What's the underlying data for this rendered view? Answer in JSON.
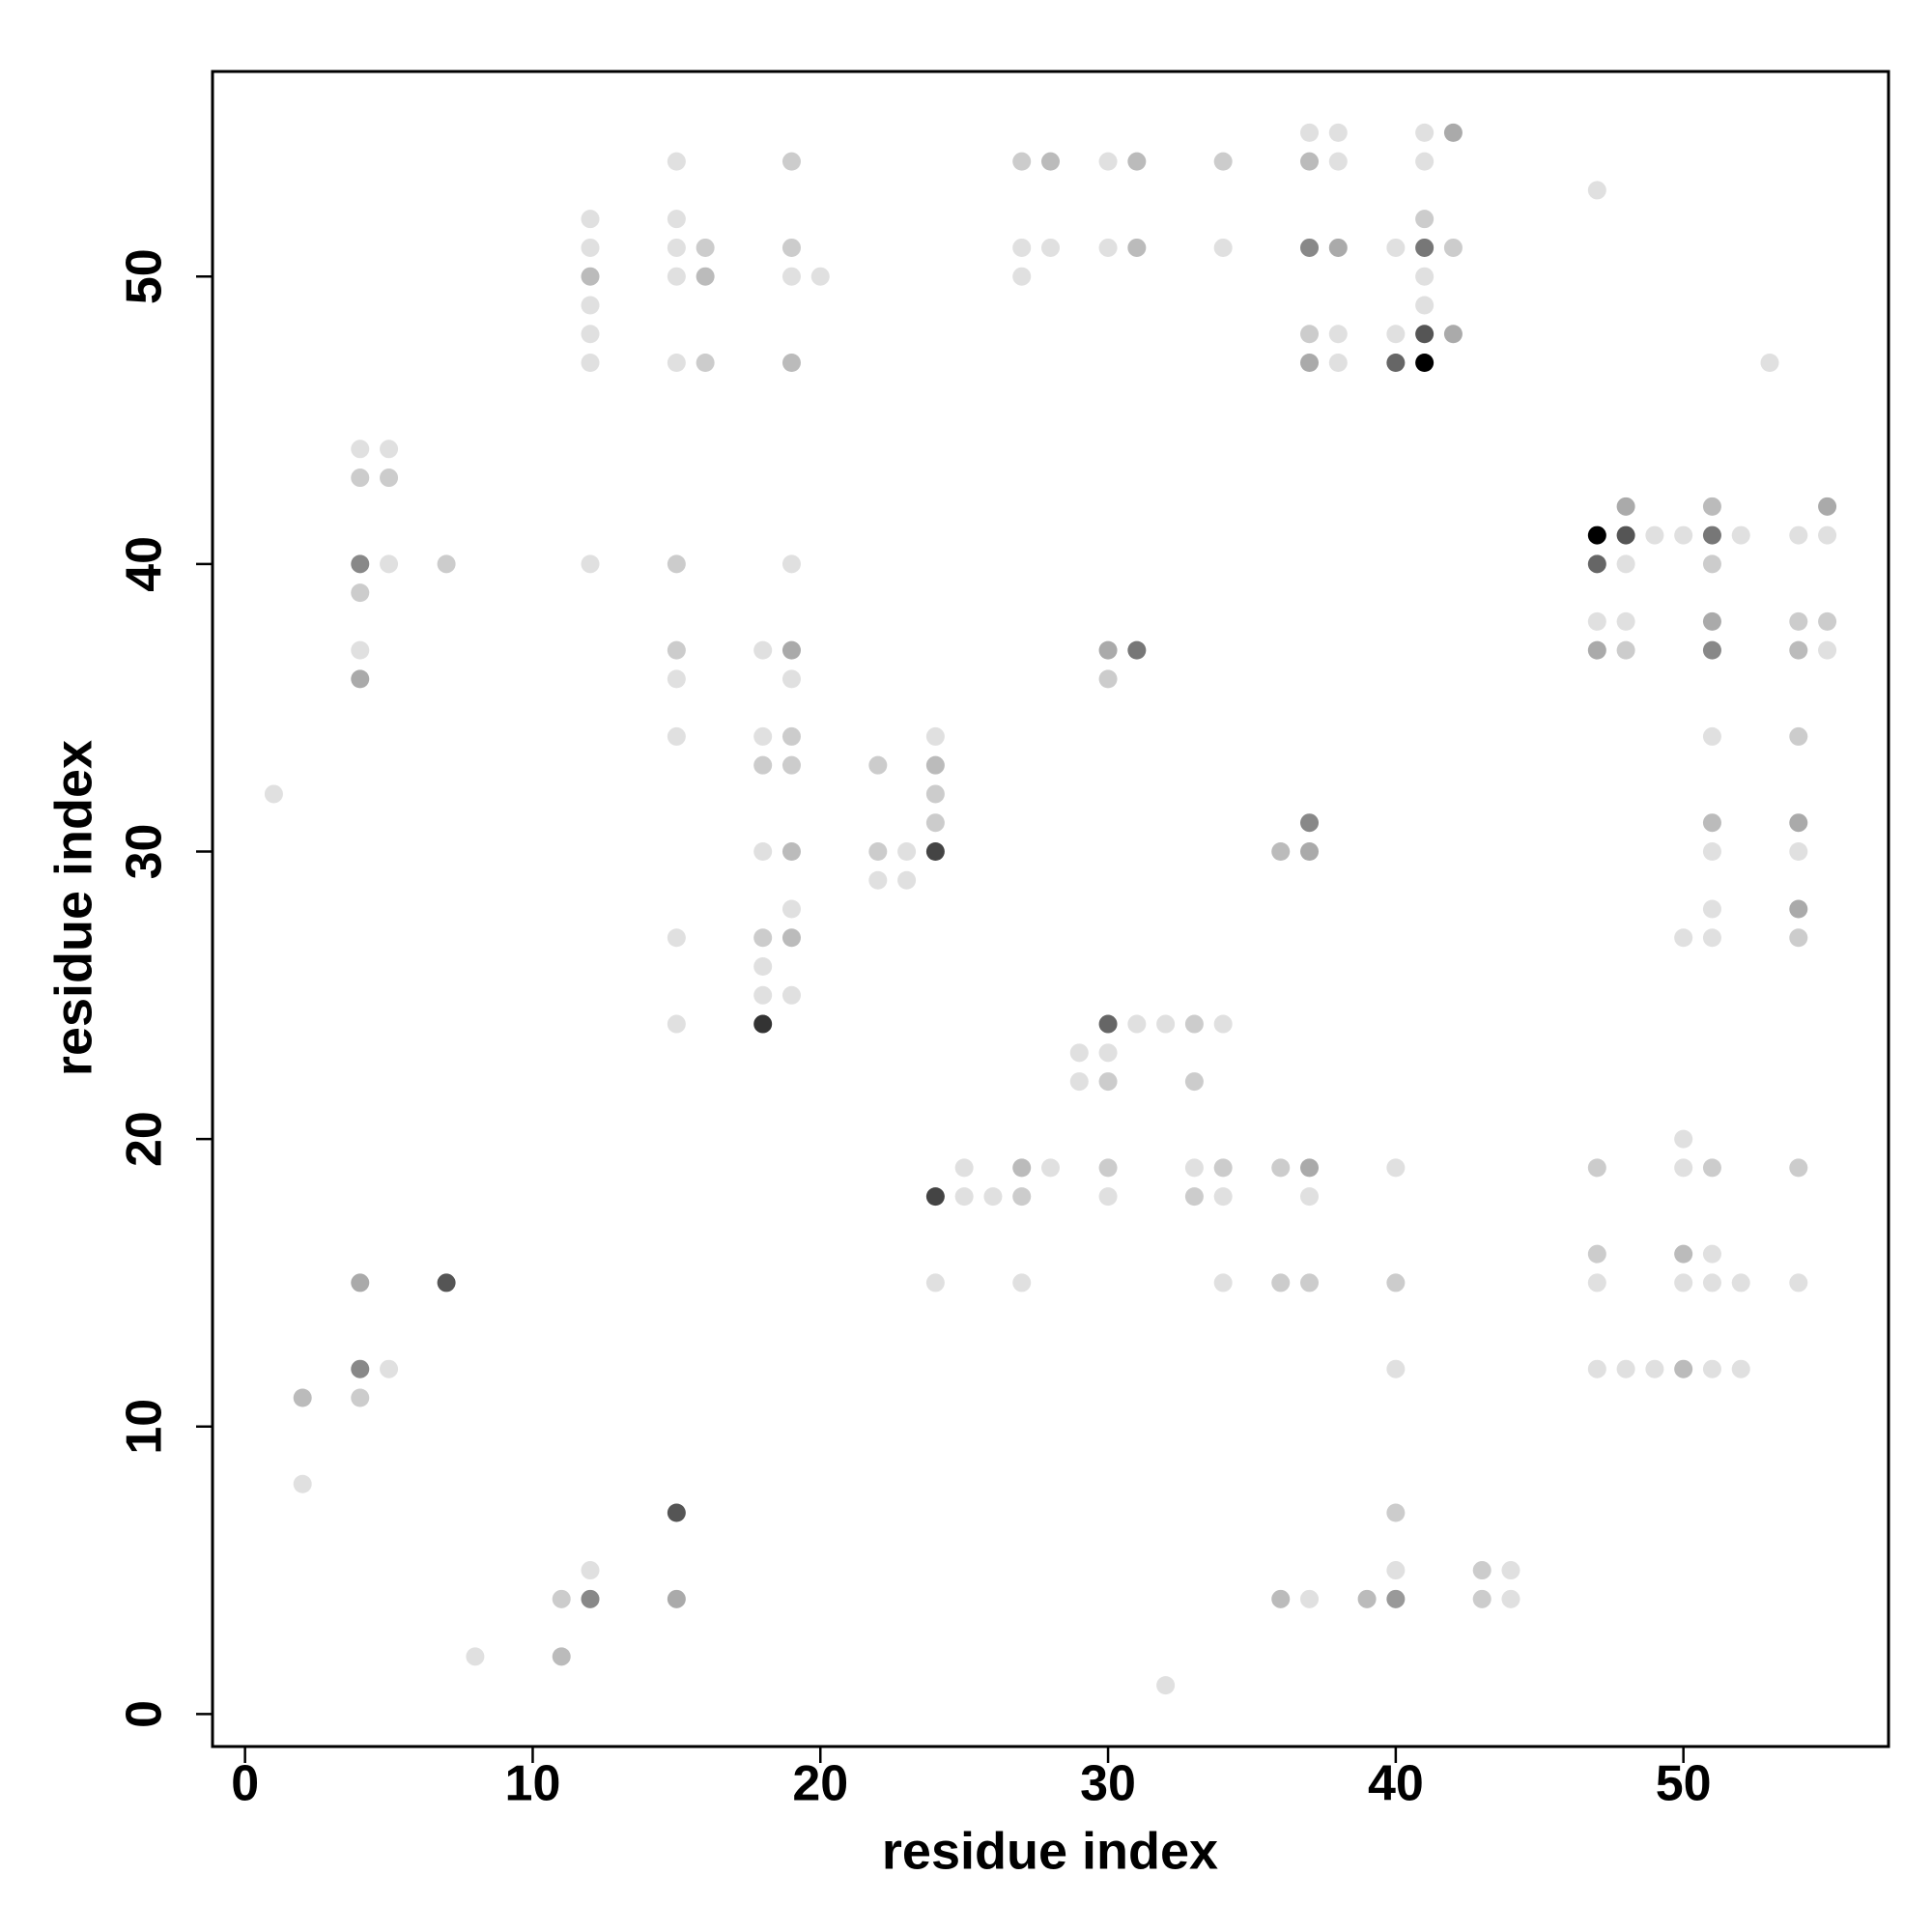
{
  "chart_data": {
    "type": "scatter",
    "xlabel": "residue index",
    "ylabel": "residue index",
    "xlim": [
      -1.13,
      57.13
    ],
    "ylim": [
      -1.13,
      57.13
    ],
    "xticks": [
      0,
      10,
      20,
      30,
      40,
      50
    ],
    "yticks": [
      0,
      10,
      20,
      30,
      40,
      50
    ],
    "x": [
      37,
      38,
      41,
      42,
      15,
      19,
      27,
      28,
      30,
      31,
      34,
      37,
      38,
      41,
      47,
      12,
      15,
      41,
      12,
      15,
      16,
      19,
      27,
      28,
      30,
      31,
      34,
      37,
      38,
      40,
      41,
      42,
      12,
      15,
      16,
      19,
      20,
      27,
      41,
      12,
      41,
      12,
      37,
      38,
      40,
      41,
      42,
      12,
      15,
      16,
      19,
      37,
      38,
      40,
      41,
      53,
      4,
      5,
      4,
      5,
      48,
      51,
      55,
      47,
      48,
      49,
      50,
      51,
      52,
      54,
      55,
      4,
      5,
      7,
      12,
      15,
      19,
      47,
      48,
      51,
      4,
      47,
      48,
      51,
      54,
      55,
      4,
      15,
      18,
      19,
      30,
      31,
      47,
      48,
      51,
      54,
      55,
      4,
      15,
      19,
      30,
      15,
      18,
      19,
      24,
      51,
      54,
      18,
      19,
      22,
      24,
      1,
      24,
      24,
      37,
      51,
      54,
      18,
      19,
      22,
      23,
      24,
      36,
      37,
      51,
      54,
      22,
      23,
      19,
      51,
      54,
      15,
      18,
      19,
      50,
      51,
      54,
      18,
      18,
      19,
      15,
      18,
      30,
      31,
      32,
      33,
      34,
      29,
      30,
      29,
      30,
      33,
      50,
      25,
      27,
      28,
      30,
      33,
      34,
      36,
      37,
      40,
      47,
      50,
      51,
      54,
      24,
      25,
      26,
      27,
      30,
      33,
      34,
      37,
      47,
      50,
      51,
      4,
      7,
      24,
      27,
      34,
      36,
      37,
      40,
      47,
      50,
      51,
      52,
      54,
      4,
      5,
      40,
      47,
      48,
      49,
      50,
      51,
      52,
      2,
      4,
      2,
      15,
      40,
      12,
      40,
      43,
      44,
      11,
      12,
      15,
      36,
      37,
      39,
      40,
      43,
      44,
      8,
      11,
      32
    ],
    "values": [
      55,
      55,
      55,
      55,
      54,
      54,
      54,
      54,
      54,
      54,
      54,
      54,
      54,
      54,
      53,
      52,
      52,
      52,
      51,
      51,
      51,
      51,
      51,
      51,
      51,
      51,
      51,
      51,
      51,
      51,
      51,
      51,
      50,
      50,
      50,
      50,
      50,
      50,
      50,
      49,
      49,
      48,
      48,
      48,
      48,
      48,
      48,
      47,
      47,
      47,
      47,
      47,
      47,
      47,
      47,
      47,
      44,
      44,
      43,
      43,
      42,
      42,
      42,
      41,
      41,
      41,
      41,
      41,
      41,
      41,
      41,
      40,
      40,
      40,
      40,
      40,
      40,
      40,
      40,
      40,
      39,
      38,
      38,
      38,
      38,
      38,
      37,
      37,
      37,
      37,
      37,
      37,
      37,
      37,
      37,
      37,
      37,
      36,
      36,
      36,
      36,
      34,
      34,
      34,
      34,
      34,
      34,
      33,
      33,
      33,
      33,
      32,
      32,
      31,
      31,
      31,
      31,
      30,
      30,
      30,
      30,
      30,
      30,
      30,
      30,
      30,
      29,
      29,
      28,
      28,
      28,
      27,
      27,
      27,
      27,
      27,
      27,
      26,
      25,
      25,
      24,
      24,
      24,
      24,
      24,
      24,
      24,
      23,
      23,
      22,
      22,
      22,
      20,
      19,
      19,
      19,
      19,
      19,
      19,
      19,
      19,
      19,
      19,
      19,
      19,
      19,
      18,
      18,
      18,
      18,
      18,
      18,
      18,
      18,
      16,
      16,
      16,
      15,
      15,
      15,
      15,
      15,
      15,
      15,
      15,
      15,
      15,
      15,
      15,
      15,
      12,
      12,
      12,
      12,
      12,
      12,
      12,
      12,
      12,
      11,
      11,
      8,
      7,
      7,
      5,
      5,
      5,
      5,
      4,
      4,
      4,
      4,
      4,
      4,
      4,
      4,
      4,
      2,
      2,
      1
    ],
    "colors": [
      "#e0e0e0",
      "#e0e0e0",
      "#e0e0e0",
      "#aaaaaa",
      "#e0e0e0",
      "#cccccc",
      "#cccccc",
      "#bbbbbb",
      "#e0e0e0",
      "#bbbbbb",
      "#cccccc",
      "#bbbbbb",
      "#e0e0e0",
      "#e0e0e0",
      "#e0e0e0",
      "#e0e0e0",
      "#e0e0e0",
      "#cccccc",
      "#e0e0e0",
      "#e0e0e0",
      "#cccccc",
      "#cccccc",
      "#e0e0e0",
      "#e0e0e0",
      "#e0e0e0",
      "#bbbbbb",
      "#e0e0e0",
      "#888888",
      "#aaaaaa",
      "#e0e0e0",
      "#777777",
      "#cccccc",
      "#bbbbbb",
      "#e0e0e0",
      "#bbbbbb",
      "#e0e0e0",
      "#e0e0e0",
      "#e0e0e0",
      "#e0e0e0",
      "#e0e0e0",
      "#e0e0e0",
      "#e0e0e0",
      "#cccccc",
      "#e0e0e0",
      "#e0e0e0",
      "#555555",
      "#aaaaaa",
      "#e0e0e0",
      "#e0e0e0",
      "#cccccc",
      "#bbbbbb",
      "#aaaaaa",
      "#e0e0e0",
      "#666666",
      "#000000",
      "#e0e0e0",
      "#e0e0e0",
      "#e0e0e0",
      "#cccccc",
      "#cccccc",
      "#aaaaaa",
      "#bbbbbb",
      "#aaaaaa",
      "#000000",
      "#555555",
      "#e0e0e0",
      "#e0e0e0",
      "#777777",
      "#e0e0e0",
      "#e0e0e0",
      "#e0e0e0",
      "#888888",
      "#e0e0e0",
      "#cccccc",
      "#e0e0e0",
      "#cccccc",
      "#e0e0e0",
      "#666666",
      "#e0e0e0",
      "#cccccc",
      "#cccccc",
      "#e0e0e0",
      "#e0e0e0",
      "#aaaaaa",
      "#cccccc",
      "#cccccc",
      "#e0e0e0",
      "#cccccc",
      "#e0e0e0",
      "#aaaaaa",
      "#aaaaaa",
      "#777777",
      "#aaaaaa",
      "#cccccc",
      "#888888",
      "#bbbbbb",
      "#e0e0e0",
      "#aaaaaa",
      "#e0e0e0",
      "#e0e0e0",
      "#cccccc",
      "#e0e0e0",
      "#e0e0e0",
      "#cccccc",
      "#e0e0e0",
      "#e0e0e0",
      "#cccccc",
      "#cccccc",
      "#cccccc",
      "#cccccc",
      "#bbbbbb",
      "#e0e0e0",
      "#cccccc",
      "#cccccc",
      "#888888",
      "#bbbbbb",
      "#aaaaaa",
      "#e0e0e0",
      "#bbbbbb",
      "#cccccc",
      "#e0e0e0",
      "#444444",
      "#bbbbbb",
      "#aaaaaa",
      "#e0e0e0",
      "#e0e0e0",
      "#e0e0e0",
      "#e0e0e0",
      "#e0e0e0",
      "#e0e0e0",
      "#aaaaaa",
      "#e0e0e0",
      "#cccccc",
      "#bbbbbb",
      "#e0e0e0",
      "#e0e0e0",
      "#cccccc",
      "#e0e0e0",
      "#e0e0e0",
      "#e0e0e0",
      "#e0e0e0",
      "#333333",
      "#666666",
      "#e0e0e0",
      "#e0e0e0",
      "#cccccc",
      "#e0e0e0",
      "#e0e0e0",
      "#e0e0e0",
      "#e0e0e0",
      "#cccccc",
      "#cccccc",
      "#e0e0e0",
      "#e0e0e0",
      "#bbbbbb",
      "#e0e0e0",
      "#cccccc",
      "#e0e0e0",
      "#cccccc",
      "#cccccc",
      "#aaaaaa",
      "#e0e0e0",
      "#cccccc",
      "#e0e0e0",
      "#cccccc",
      "#cccccc",
      "#444444",
      "#e0e0e0",
      "#e0e0e0",
      "#cccccc",
      "#e0e0e0",
      "#cccccc",
      "#e0e0e0",
      "#e0e0e0",
      "#cccccc",
      "#bbbbbb",
      "#e0e0e0",
      "#aaaaaa",
      "#555555",
      "#e0e0e0",
      "#e0e0e0",
      "#e0e0e0",
      "#cccccc",
      "#cccccc",
      "#cccccc",
      "#e0e0e0",
      "#e0e0e0",
      "#e0e0e0",
      "#e0e0e0",
      "#e0e0e0",
      "#888888",
      "#e0e0e0",
      "#e0e0e0",
      "#e0e0e0",
      "#e0e0e0",
      "#e0e0e0",
      "#bbbbbb",
      "#e0e0e0",
      "#e0e0e0",
      "#bbbbbb",
      "#cccccc",
      "#e0e0e0",
      "#555555",
      "#cccccc",
      "#e0e0e0",
      "#e0e0e0",
      "#cccccc",
      "#e0e0e0",
      "#cccccc",
      "#888888",
      "#aaaaaa",
      "#bbbbbb",
      "#e0e0e0",
      "#bbbbbb",
      "#999999",
      "#cccccc",
      "#e0e0e0",
      "#e0e0e0",
      "#bbbbbb",
      "#e0e0e0"
    ]
  }
}
